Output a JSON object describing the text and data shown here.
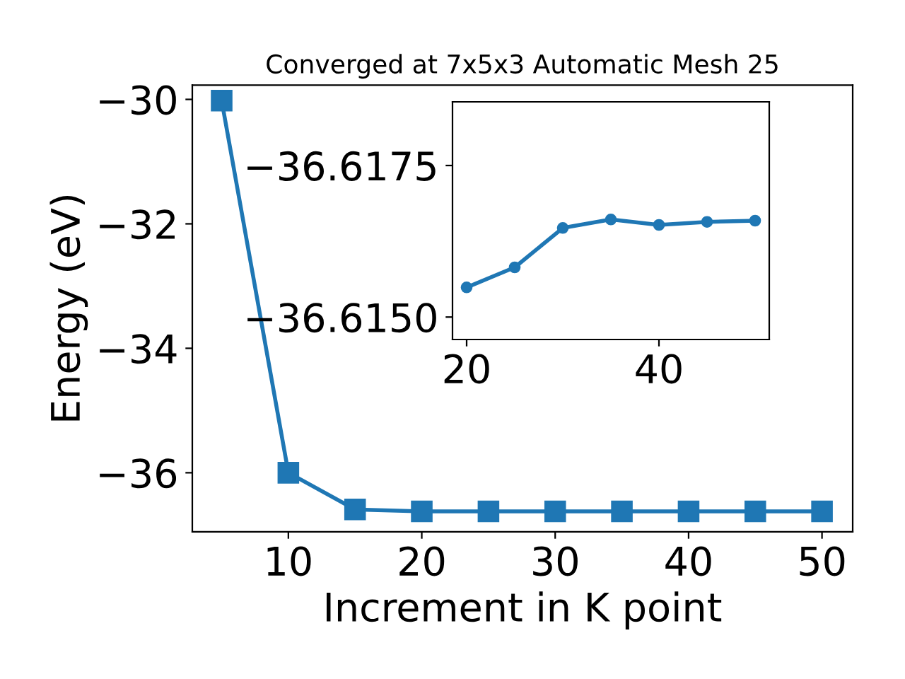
{
  "chart_data": [
    {
      "type": "line",
      "title": "Converged at 7x5x3 Automatic Mesh 25",
      "xlabel": "Increment in K point",
      "ylabel": "Energy (eV)",
      "x": [
        5,
        10,
        15,
        20,
        25,
        30,
        35,
        40,
        45,
        50
      ],
      "series": [
        {
          "color": "#1f77b4",
          "values": [
            -30.02,
            -36.0,
            -36.59,
            -36.62,
            -36.62,
            -36.62,
            -36.62,
            -36.62,
            -36.62,
            -36.62
          ]
        }
      ],
      "marker": "square",
      "line_style": "solid",
      "xlim": [
        2.8,
        52.3
      ],
      "ylim": [
        -36.95,
        -29.77
      ],
      "xticks": [
        10,
        20,
        30,
        40,
        50
      ],
      "yticks": [
        -36,
        -34,
        -32,
        -30
      ],
      "grid": false,
      "legend": false
    },
    {
      "type": "line",
      "x": [
        20,
        25,
        30,
        35,
        40,
        45,
        50
      ],
      "series": [
        {
          "color": "#1f77b4",
          "values": [
            -36.61549,
            -36.61582,
            -36.61647,
            -36.61661,
            -36.61652,
            -36.61657,
            -36.61659
          ]
        }
      ],
      "marker": "circle",
      "line_style": "solid",
      "xlim": [
        18.53,
        51.47
      ],
      "ylim": [
        -36.61463,
        -36.61855
      ],
      "xticks": [
        20,
        40
      ],
      "yticks": [
        {
          "value": -36.615,
          "label": "−36.6150"
        },
        -36.6175
      ],
      "grid": false,
      "legend": false
    }
  ]
}
